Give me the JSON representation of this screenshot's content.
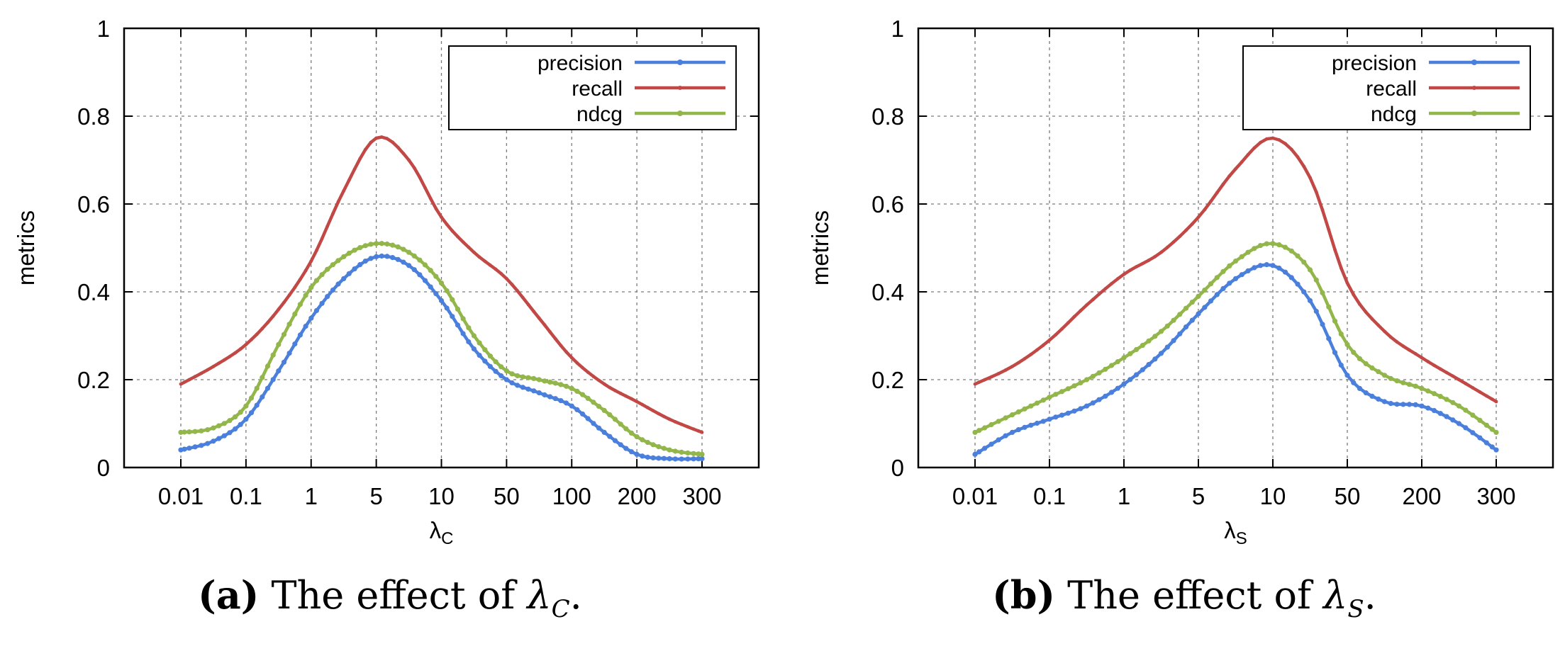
{
  "colors": {
    "precision": "#4a7fdc",
    "recall": "#c24846",
    "ndcg": "#92b64a",
    "grid": "#7a7a7a"
  },
  "chart_data": [
    {
      "type": "line",
      "panel": "a",
      "caption": {
        "label": "(a)",
        "text": "The effect of ",
        "symbol": "λ",
        "subscript": "C",
        "end": "."
      },
      "xlabel": {
        "symbol": "λ",
        "subscript": "C"
      },
      "ylabel": "metrics",
      "categories": [
        "0.01",
        "0.1",
        "1",
        "5",
        "10",
        "50",
        "100",
        "200",
        "300"
      ],
      "ylim": [
        0,
        1
      ],
      "yticks": [
        "0",
        "0.2",
        "0.4",
        "0.6",
        "0.8",
        "1"
      ],
      "grid": true,
      "legend_position": "top-right",
      "series": [
        {
          "name": "precision",
          "color_key": "precision",
          "x": [
            0,
            0.5,
            1,
            1.5,
            2,
            2.5,
            3,
            3.5,
            4,
            4.5,
            5,
            5.5,
            6,
            6.5,
            7,
            7.5,
            8
          ],
          "y": [
            0.04,
            0.06,
            0.11,
            0.22,
            0.34,
            0.43,
            0.48,
            0.46,
            0.38,
            0.27,
            0.2,
            0.17,
            0.14,
            0.08,
            0.03,
            0.02,
            0.02
          ]
        },
        {
          "name": "recall",
          "color_key": "recall",
          "x": [
            0,
            0.5,
            1,
            1.5,
            2,
            2.5,
            3,
            3.5,
            4,
            4.5,
            5,
            5.5,
            6,
            6.5,
            7,
            7.5,
            8
          ],
          "y": [
            0.19,
            0.23,
            0.28,
            0.36,
            0.47,
            0.63,
            0.75,
            0.7,
            0.57,
            0.49,
            0.43,
            0.34,
            0.25,
            0.19,
            0.15,
            0.11,
            0.08
          ]
        },
        {
          "name": "ndcg",
          "color_key": "ndcg",
          "x": [
            0,
            0.5,
            1,
            1.5,
            2,
            2.5,
            3,
            3.5,
            4,
            4.5,
            5,
            5.5,
            6,
            6.5,
            7,
            7.5,
            8
          ],
          "y": [
            0.08,
            0.09,
            0.14,
            0.28,
            0.41,
            0.48,
            0.51,
            0.49,
            0.42,
            0.3,
            0.22,
            0.2,
            0.18,
            0.13,
            0.07,
            0.04,
            0.03
          ]
        }
      ]
    },
    {
      "type": "line",
      "panel": "b",
      "caption": {
        "label": "(b)",
        "text": "The effect of ",
        "symbol": "λ",
        "subscript": "S",
        "end": "."
      },
      "xlabel": {
        "symbol": "λ",
        "subscript": "S"
      },
      "ylabel": "metrics",
      "categories": [
        "0.01",
        "0.1",
        "1",
        "5",
        "10",
        "50",
        "200",
        "300"
      ],
      "ylim": [
        0,
        1
      ],
      "yticks": [
        "0",
        "0.2",
        "0.4",
        "0.6",
        "0.8",
        "1"
      ],
      "grid": true,
      "legend_position": "top-right",
      "series": [
        {
          "name": "precision",
          "color_key": "precision",
          "x": [
            0,
            0.5,
            1,
            1.5,
            2,
            2.5,
            3,
            3.5,
            4,
            4.5,
            5,
            5.5,
            6,
            6.5,
            7
          ],
          "y": [
            0.03,
            0.08,
            0.11,
            0.14,
            0.19,
            0.26,
            0.35,
            0.43,
            0.46,
            0.38,
            0.21,
            0.15,
            0.14,
            0.1,
            0.04
          ]
        },
        {
          "name": "recall",
          "color_key": "recall",
          "x": [
            0,
            0.5,
            1,
            1.5,
            2,
            2.5,
            3,
            3.5,
            4,
            4.5,
            5,
            5.5,
            6,
            6.5,
            7
          ],
          "y": [
            0.19,
            0.23,
            0.29,
            0.37,
            0.44,
            0.49,
            0.57,
            0.68,
            0.75,
            0.66,
            0.42,
            0.31,
            0.25,
            0.2,
            0.15
          ]
        },
        {
          "name": "ndcg",
          "color_key": "ndcg",
          "x": [
            0,
            0.5,
            1,
            1.5,
            2,
            2.5,
            3,
            3.5,
            4,
            4.5,
            5,
            5.5,
            6,
            6.5,
            7
          ],
          "y": [
            0.08,
            0.12,
            0.16,
            0.2,
            0.25,
            0.31,
            0.39,
            0.47,
            0.51,
            0.45,
            0.28,
            0.21,
            0.18,
            0.14,
            0.08
          ]
        }
      ]
    }
  ]
}
